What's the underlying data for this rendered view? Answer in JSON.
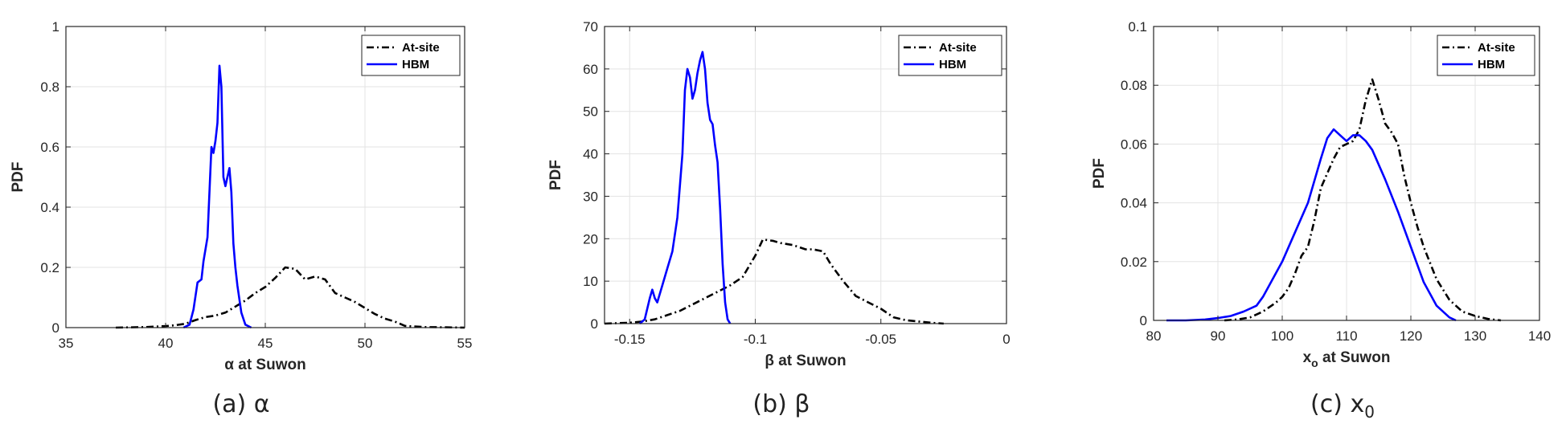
{
  "chart_data": [
    {
      "type": "line",
      "caption": "(a) α",
      "xlabel": "α at Suwon",
      "ylabel": "PDF",
      "xlim": [
        35,
        55
      ],
      "ylim": [
        0,
        1
      ],
      "xticks": [
        35,
        40,
        45,
        50,
        55
      ],
      "xtick_labels": [
        "35",
        "40",
        "45",
        "50",
        "55"
      ],
      "yticks": [
        0,
        0.2,
        0.4,
        0.6,
        0.8,
        1
      ],
      "ytick_labels": [
        "0",
        "0.2",
        "0.4",
        "0.6",
        "0.8",
        "1"
      ],
      "grid": true,
      "legend": "top-right",
      "series": [
        {
          "name": "At-site",
          "color": "#000000",
          "style": "dashdot",
          "x": [
            37.5,
            39,
            40,
            40.5,
            41,
            41.5,
            42,
            42.5,
            43,
            43.5,
            44,
            44.5,
            45,
            45.5,
            46,
            46.5,
            47,
            47.5,
            48,
            48.5,
            49,
            49.5,
            50,
            50.5,
            51,
            51.5,
            52,
            53,
            54,
            55
          ],
          "y": [
            0,
            0.002,
            0.005,
            0.008,
            0.013,
            0.025,
            0.035,
            0.04,
            0.05,
            0.07,
            0.09,
            0.115,
            0.135,
            0.165,
            0.2,
            0.195,
            0.16,
            0.17,
            0.16,
            0.115,
            0.1,
            0.085,
            0.065,
            0.045,
            0.03,
            0.02,
            0.006,
            0.002,
            0.001,
            0
          ]
        },
        {
          "name": "HBM",
          "color": "#0000ff",
          "style": "solid",
          "x": [
            40.9,
            41.2,
            41.4,
            41.6,
            41.8,
            41.9,
            42.1,
            42.3,
            42.4,
            42.5,
            42.6,
            42.7,
            42.8,
            42.9,
            43.0,
            43.1,
            43.2,
            43.3,
            43.4,
            43.5,
            43.6,
            43.8,
            44.0,
            44.3
          ],
          "y": [
            0,
            0.01,
            0.06,
            0.15,
            0.16,
            0.22,
            0.3,
            0.6,
            0.58,
            0.62,
            0.68,
            0.87,
            0.8,
            0.5,
            0.47,
            0.5,
            0.53,
            0.45,
            0.28,
            0.2,
            0.14,
            0.05,
            0.01,
            0
          ]
        }
      ]
    },
    {
      "type": "line",
      "caption": "(b) β",
      "xlabel": "β at Suwon",
      "ylabel": "PDF",
      "xlim": [
        -0.16,
        0
      ],
      "ylim": [
        0,
        70
      ],
      "xticks": [
        -0.15,
        -0.1,
        -0.05,
        0
      ],
      "xtick_labels": [
        "-0.15",
        "-0.1",
        "-0.05",
        "0"
      ],
      "yticks": [
        0,
        10,
        20,
        30,
        40,
        50,
        60,
        70
      ],
      "ytick_labels": [
        "0",
        "10",
        "20",
        "30",
        "40",
        "50",
        "60",
        "70"
      ],
      "grid": true,
      "legend": "top-right",
      "series": [
        {
          "name": "At-site",
          "color": "#000000",
          "style": "dashdot",
          "x": [
            -0.16,
            -0.15,
            -0.145,
            -0.14,
            -0.135,
            -0.13,
            -0.125,
            -0.12,
            -0.115,
            -0.11,
            -0.105,
            -0.1,
            -0.097,
            -0.093,
            -0.09,
            -0.085,
            -0.08,
            -0.077,
            -0.073,
            -0.07,
            -0.065,
            -0.06,
            -0.055,
            -0.05,
            -0.045,
            -0.04,
            -0.035,
            -0.03,
            -0.025
          ],
          "y": [
            0,
            0.2,
            0.5,
            1,
            2,
            3,
            4.5,
            6,
            7.5,
            9,
            11,
            16,
            19.8,
            19.5,
            19,
            18.5,
            17.5,
            17.5,
            17,
            14,
            10,
            6.5,
            5,
            3.5,
            1.5,
            0.8,
            0.5,
            0.2,
            0
          ]
        },
        {
          "name": "HBM",
          "color": "#0000ff",
          "style": "solid",
          "x": [
            -0.146,
            -0.144,
            -0.142,
            -0.141,
            -0.14,
            -0.139,
            -0.137,
            -0.135,
            -0.133,
            -0.131,
            -0.129,
            -0.128,
            -0.127,
            -0.126,
            -0.125,
            -0.124,
            -0.123,
            -0.122,
            -0.121,
            -0.12,
            -0.119,
            -0.118,
            -0.117,
            -0.116,
            -0.115,
            -0.114,
            -0.113,
            -0.112,
            -0.111,
            -0.11
          ],
          "y": [
            0,
            1,
            6,
            8,
            6,
            5,
            9,
            13,
            17,
            25,
            40,
            55,
            60,
            58,
            53,
            55,
            59,
            62,
            64,
            60,
            52,
            48,
            47,
            42,
            38,
            27,
            14,
            5,
            1,
            0
          ]
        }
      ]
    },
    {
      "type": "line",
      "caption": "(c) x0",
      "xlabel": "xo at Suwon",
      "xlabel_main": "x",
      "xlabel_sub": "o",
      "xlabel_rest": " at Suwon",
      "ylabel": "PDF",
      "xlim": [
        80,
        140
      ],
      "ylim": [
        0,
        0.1
      ],
      "xticks": [
        80,
        90,
        100,
        110,
        120,
        130,
        140
      ],
      "xtick_labels": [
        "80",
        "90",
        "100",
        "110",
        "120",
        "130",
        "140"
      ],
      "yticks": [
        0,
        0.02,
        0.04,
        0.06,
        0.08,
        0.1
      ],
      "ytick_labels": [
        "0",
        "0.02",
        "0.04",
        "0.06",
        "0.08",
        "0.1"
      ],
      "grid": true,
      "legend": "top-right",
      "series": [
        {
          "name": "At-site",
          "color": "#000000",
          "style": "dashdot",
          "x": [
            91,
            93,
            95,
            97,
            99,
            100,
            101,
            102,
            103,
            104,
            105,
            106,
            107,
            108,
            109,
            110,
            111,
            112,
            113,
            114,
            115,
            116,
            117,
            118,
            119,
            120,
            121,
            122,
            124,
            126,
            128,
            130,
            132,
            134
          ],
          "y": [
            0,
            0.0003,
            0.001,
            0.003,
            0.006,
            0.008,
            0.011,
            0.016,
            0.022,
            0.025,
            0.034,
            0.045,
            0.05,
            0.055,
            0.059,
            0.06,
            0.061,
            0.065,
            0.075,
            0.082,
            0.075,
            0.067,
            0.064,
            0.06,
            0.049,
            0.04,
            0.032,
            0.025,
            0.014,
            0.007,
            0.003,
            0.0015,
            0.0005,
            0
          ]
        },
        {
          "name": "HBM",
          "color": "#0000ff",
          "style": "solid",
          "x": [
            82,
            85,
            88,
            90,
            92,
            94,
            96,
            97,
            98,
            100,
            102,
            104,
            106,
            107,
            108,
            109,
            110,
            111,
            112,
            113,
            114,
            116,
            118,
            120,
            122,
            124,
            126,
            127
          ],
          "y": [
            0,
            0,
            0.0003,
            0.0008,
            0.0015,
            0.003,
            0.005,
            0.008,
            0.012,
            0.02,
            0.03,
            0.04,
            0.055,
            0.062,
            0.065,
            0.063,
            0.061,
            0.063,
            0.063,
            0.061,
            0.058,
            0.048,
            0.037,
            0.025,
            0.013,
            0.005,
            0.001,
            0
          ]
        }
      ]
    }
  ]
}
